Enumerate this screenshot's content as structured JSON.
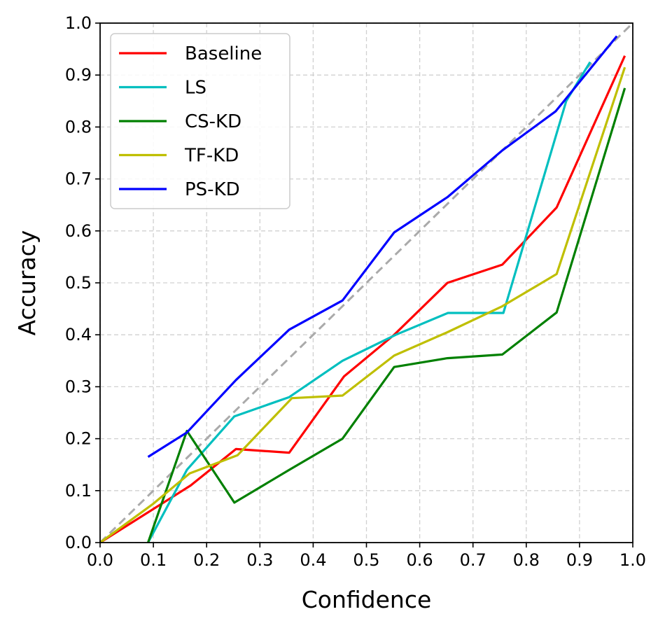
{
  "chart_data": {
    "type": "line",
    "title": "",
    "xlabel": "Confidence",
    "ylabel": "Accuracy",
    "xlim": [
      0.0,
      1.0
    ],
    "ylim": [
      0.0,
      1.0
    ],
    "xticks": [
      "0.0",
      "0.1",
      "0.2",
      "0.3",
      "0.4",
      "0.5",
      "0.6",
      "0.7",
      "0.8",
      "0.9",
      "1.0"
    ],
    "yticks": [
      "0.0",
      "0.1",
      "0.2",
      "0.3",
      "0.4",
      "0.5",
      "0.6",
      "0.7",
      "0.8",
      "0.9",
      "1.0"
    ],
    "grid": true,
    "legend_position": "top-left",
    "reference_line": {
      "x": [
        0.0,
        1.0
      ],
      "y": [
        0.0,
        1.0
      ],
      "color": "#aaaaaa",
      "style": "dashed"
    },
    "series": [
      {
        "name": "Baseline",
        "color": "#ff0000",
        "x": [
          0.0,
          0.17,
          0.255,
          0.355,
          0.458,
          0.552,
          0.652,
          0.755,
          0.857,
          0.985
        ],
        "y": [
          0.0,
          0.11,
          0.18,
          0.173,
          0.32,
          0.4,
          0.5,
          0.535,
          0.645,
          0.937
        ]
      },
      {
        "name": "LS",
        "color": "#00bfbf",
        "x": [
          0.09,
          0.163,
          0.252,
          0.355,
          0.455,
          0.555,
          0.653,
          0.757,
          0.875,
          0.92
        ],
        "y": [
          0.0,
          0.14,
          0.243,
          0.28,
          0.35,
          0.4,
          0.442,
          0.442,
          0.85,
          0.925
        ]
      },
      {
        "name": "CS-KD",
        "color": "#008000",
        "x": [
          0.09,
          0.163,
          0.252,
          0.355,
          0.455,
          0.552,
          0.652,
          0.755,
          0.857,
          0.985
        ],
        "y": [
          0.0,
          0.215,
          0.077,
          0.14,
          0.2,
          0.338,
          0.355,
          0.362,
          0.443,
          0.875
        ]
      },
      {
        "name": "TF-KD",
        "color": "#bfbf00",
        "x": [
          0.0,
          0.1,
          0.168,
          0.258,
          0.36,
          0.455,
          0.552,
          0.652,
          0.755,
          0.857,
          0.985
        ],
        "y": [
          0.0,
          0.075,
          0.133,
          0.168,
          0.278,
          0.283,
          0.36,
          0.405,
          0.455,
          0.517,
          0.915
        ]
      },
      {
        "name": "PS-KD",
        "color": "#0000ff",
        "x": [
          0.09,
          0.163,
          0.255,
          0.355,
          0.455,
          0.552,
          0.652,
          0.755,
          0.855,
          0.97
        ],
        "y": [
          0.165,
          0.212,
          0.313,
          0.41,
          0.466,
          0.597,
          0.665,
          0.755,
          0.83,
          0.975
        ]
      }
    ]
  }
}
